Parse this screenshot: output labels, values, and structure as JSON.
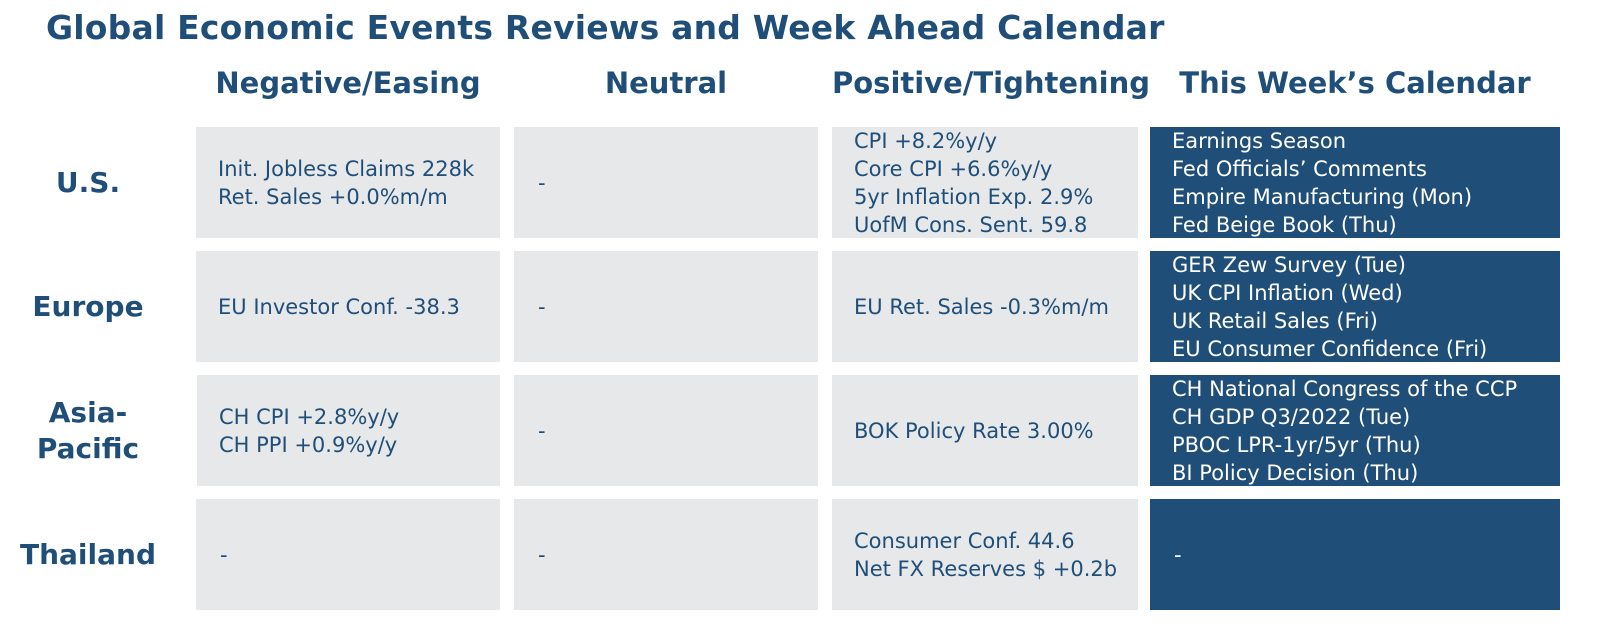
{
  "title": "Global Economic Events Reviews and Week Ahead Calendar",
  "columns": {
    "negative": "Negative/Easing",
    "neutral": "Neutral",
    "positive": "Positive/Tightening",
    "calendar": "This Week’s Calendar"
  },
  "rows": [
    {
      "label_lines": [
        "U.S."
      ],
      "negative": [
        "Init. Jobless Claims 228k",
        "Ret. Sales +0.0%m/m"
      ],
      "neutral": [
        "-"
      ],
      "positive": [
        "CPI +8.2%y/y",
        "Core CPI +6.6%y/y",
        "5yr Inflation Exp. 2.9%",
        "UofM Cons. Sent. 59.8"
      ],
      "calendar": [
        "Earnings Season",
        "Fed Officials’ Comments",
        "Empire Manufacturing (Mon)",
        "Fed Beige Book (Thu)"
      ]
    },
    {
      "label_lines": [
        "Europe"
      ],
      "negative": [
        "EU Investor Conf. -38.3"
      ],
      "neutral": [
        "-"
      ],
      "positive": [
        "EU Ret. Sales -0.3%m/m"
      ],
      "calendar": [
        "GER Zew Survey (Tue)",
        "UK CPI Inflation (Wed)",
        "UK Retail Sales (Fri)",
        "EU Consumer Confidence (Fri)"
      ]
    },
    {
      "label_lines": [
        "Asia-",
        "Pacific"
      ],
      "negative": [
        "CH CPI +2.8%y/y",
        "CH PPI +0.9%y/y"
      ],
      "neutral": [
        "-"
      ],
      "positive": [
        "BOK Policy Rate 3.00%"
      ],
      "calendar": [
        "CH National Congress of the CCP",
        "CH GDP Q3/2022 (Tue)",
        "PBOC LPR-1yr/5yr (Thu)",
        "BI Policy Decision (Thu)"
      ]
    },
    {
      "label_lines": [
        "Thailand"
      ],
      "negative": [
        "-"
      ],
      "neutral": [
        "-"
      ],
      "positive": [
        "Consumer Conf. 44.6",
        "Net FX Reserves $ +0.2b"
      ],
      "calendar": [
        "-"
      ]
    }
  ]
}
